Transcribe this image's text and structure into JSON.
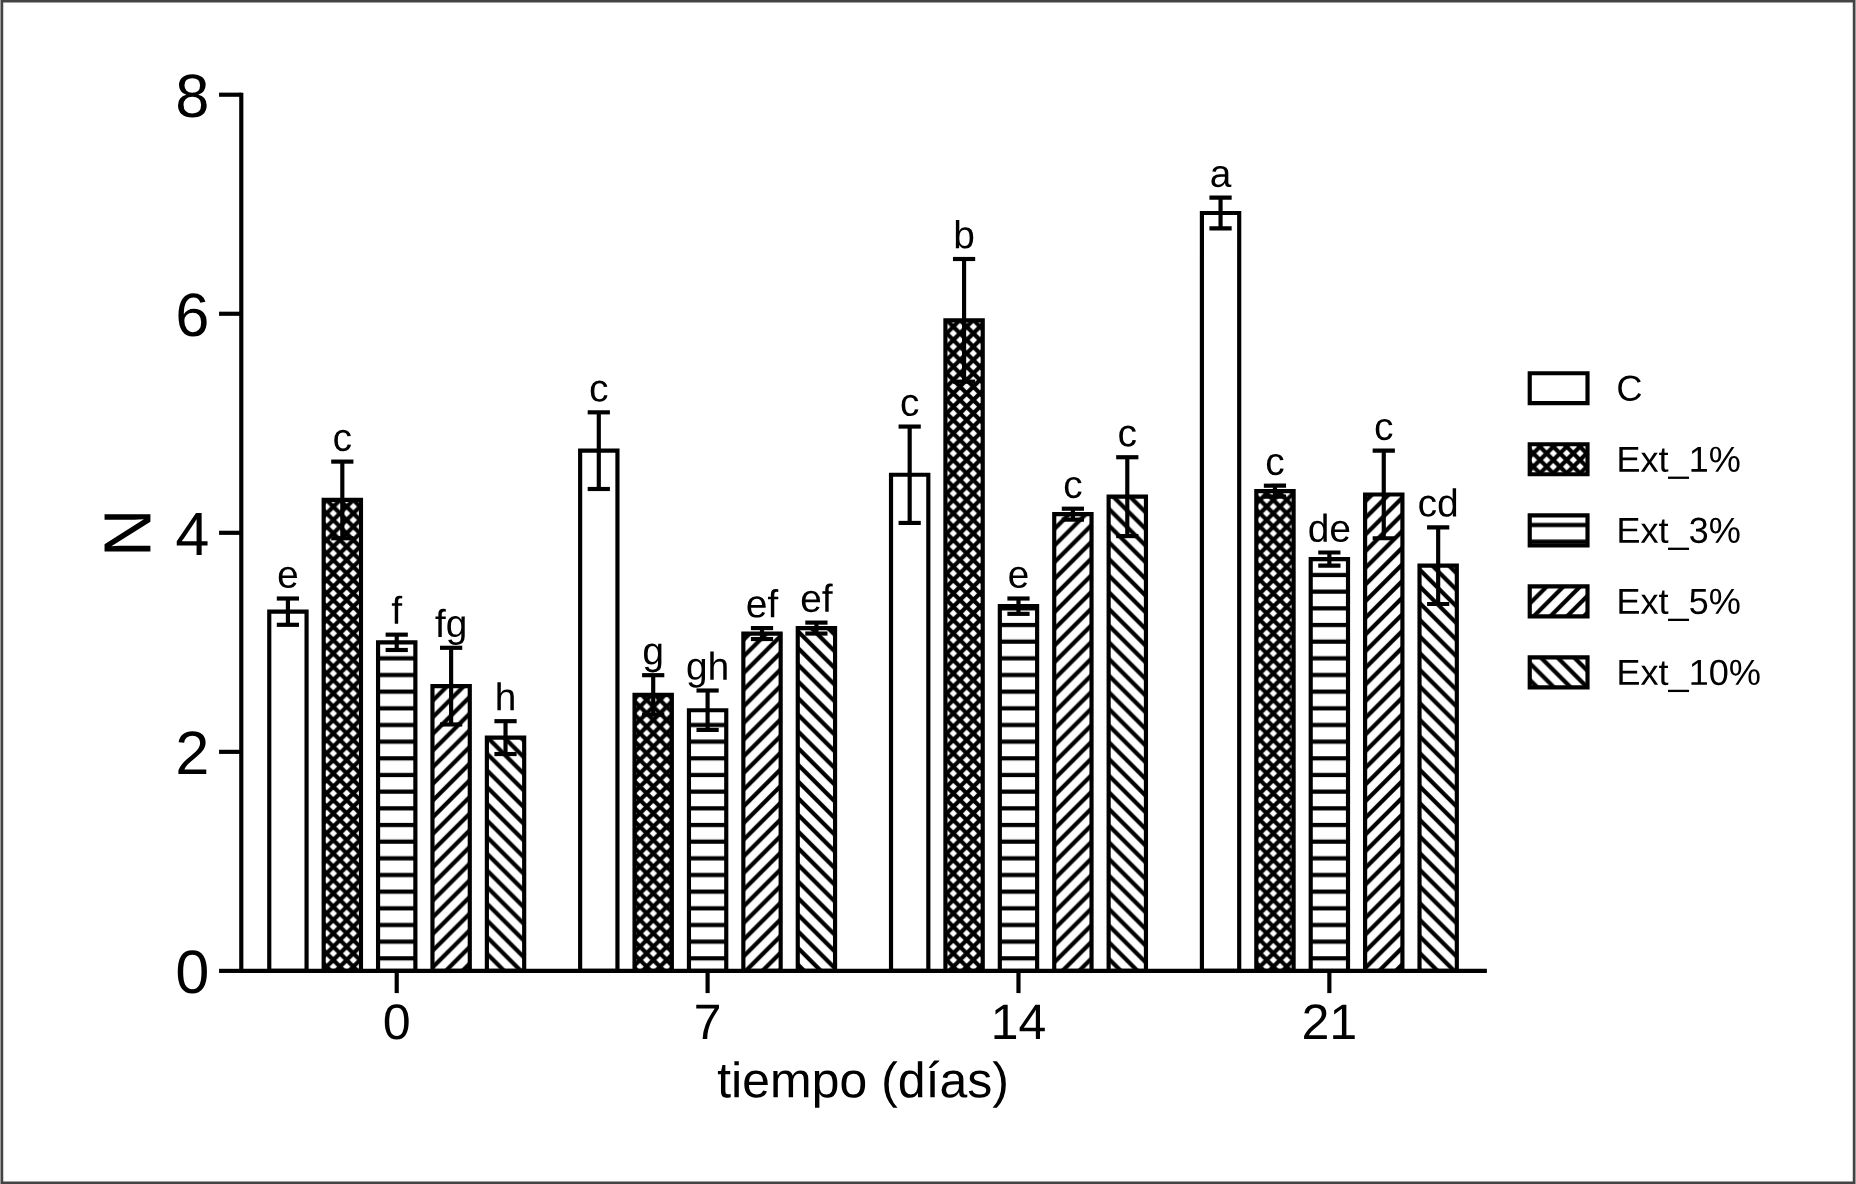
{
  "chart_data": {
    "type": "bar",
    "xlabel": "tiempo (días)",
    "ylabel": "N",
    "categories": [
      "0",
      "7",
      "14",
      "21"
    ],
    "ylim": [
      0,
      8
    ],
    "yticks": [
      0,
      2,
      4,
      6,
      8
    ],
    "grid": false,
    "legend": "right",
    "series": [
      {
        "name": "C",
        "color": "#ffffff",
        "values": [
          3.28,
          4.75,
          4.53,
          6.92
        ],
        "errors": [
          0.12,
          0.35,
          0.44,
          0.14
        ],
        "value_labels": [
          "e",
          "c",
          "c",
          "a"
        ]
      },
      {
        "name": "Ext_1%",
        "color": "#000000",
        "values": [
          4.3,
          2.52,
          5.94,
          4.38
        ],
        "errors": [
          0.35,
          0.18,
          0.56,
          0.05
        ],
        "value_labels": [
          "c",
          "g",
          "b",
          "c"
        ]
      },
      {
        "name": "Ext_3%",
        "color": "#000000",
        "values": [
          3.0,
          2.38,
          3.33,
          3.76
        ],
        "errors": [
          0.07,
          0.18,
          0.07,
          0.06
        ],
        "value_labels": [
          "f",
          "gh",
          "e",
          "de"
        ]
      },
      {
        "name": "Ext_5%",
        "color": "#000000",
        "values": [
          2.6,
          3.08,
          4.17,
          4.35
        ],
        "errors": [
          0.35,
          0.05,
          0.05,
          0.4
        ],
        "value_labels": [
          "fg",
          "ef",
          "c",
          "c"
        ]
      },
      {
        "name": "Ext_10%",
        "color": "#000000",
        "values": [
          2.13,
          3.13,
          4.33,
          3.7
        ],
        "errors": [
          0.15,
          0.05,
          0.36,
          0.35
        ],
        "value_labels": [
          "h",
          "ef",
          "c",
          "cd"
        ]
      }
    ]
  }
}
